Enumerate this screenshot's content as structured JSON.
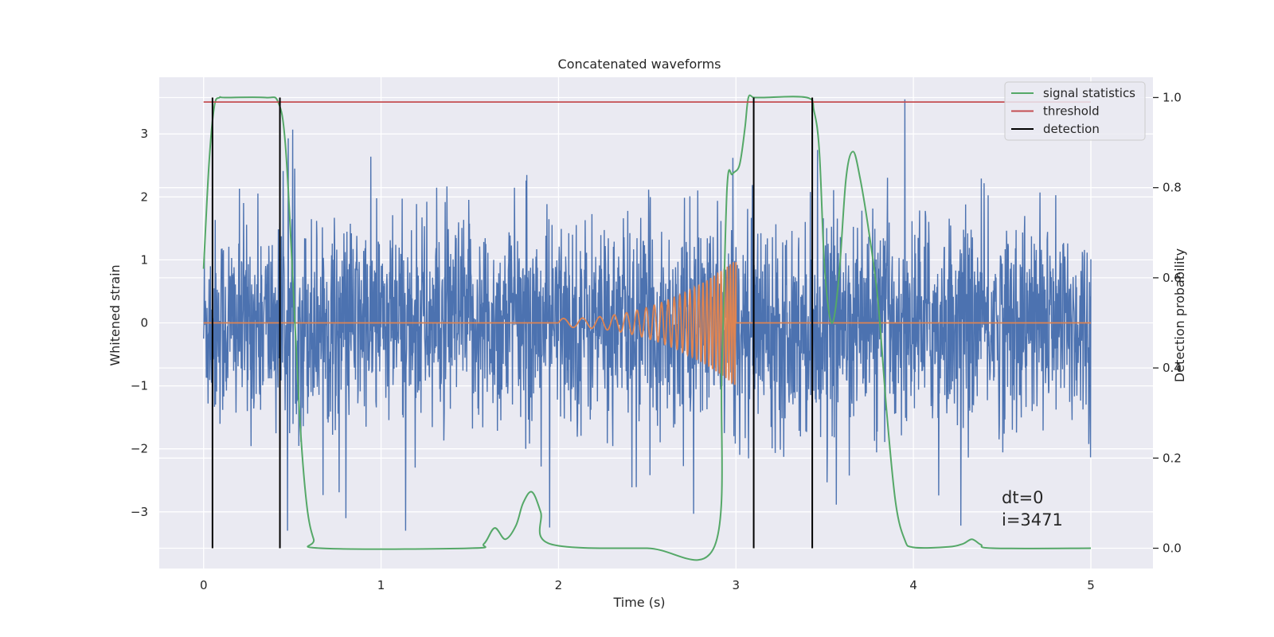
{
  "chart_data": {
    "type": "line",
    "title": "Concatenated waveforms",
    "xlabel": "Time (s)",
    "ylabel": "Whitened strain",
    "y2label": "Detection probability",
    "xlim": [
      -0.25,
      5.35
    ],
    "ylim": [
      -3.9,
      3.9
    ],
    "y2lim": [
      -0.045,
      1.045
    ],
    "xticks": [
      0,
      1,
      2,
      3,
      4,
      5
    ],
    "yticks": [
      -3,
      -2,
      -1,
      0,
      1,
      2,
      3
    ],
    "y2ticks": [
      0.0,
      0.2,
      0.4,
      0.6,
      0.8,
      1.0
    ],
    "xtick_labels": [
      "0",
      "1",
      "2",
      "3",
      "4",
      "5"
    ],
    "ytick_labels": [
      "−3",
      "−2",
      "−1",
      "0",
      "1",
      "2",
      "3"
    ],
    "y2tick_labels": [
      "0.0",
      "0.2",
      "0.4",
      "0.6",
      "0.8",
      "1.0"
    ],
    "grid": true,
    "legend_position": "top-right",
    "series": [
      {
        "name": "",
        "kind": "whitened strain noise",
        "color": "#4c72b0",
        "x_range": [
          0,
          5
        ],
        "typical_amplitude": 1.3,
        "max_value": 3.55,
        "min_value": -3.3
      },
      {
        "name": "",
        "kind": "injected chirp waveform",
        "color": "#dd8452",
        "x_range": [
          0,
          5
        ],
        "chirp_start": 2.0,
        "chirp_end": 3.0,
        "amplitude_start": 0.07,
        "amplitude_end": 1.0
      },
      {
        "name": "signal statistics",
        "color": "#55a868",
        "axis": "right",
        "x": [
          0.0,
          0.03,
          0.06,
          0.09,
          0.12,
          0.35,
          0.42,
          0.46,
          0.5,
          0.54,
          0.58,
          0.62,
          0.66,
          1.5,
          1.58,
          1.64,
          1.7,
          1.76,
          1.8,
          1.85,
          1.9,
          1.95,
          2.5,
          2.88,
          2.92,
          2.95,
          2.98,
          3.02,
          3.05,
          3.07,
          3.1,
          3.15,
          3.4,
          3.44,
          3.47,
          3.5,
          3.54,
          3.58,
          3.62,
          3.66,
          3.7,
          3.75,
          3.8,
          3.85,
          3.9,
          3.95,
          4.0,
          4.2,
          4.28,
          4.33,
          4.38,
          4.45,
          5.0
        ],
        "y": [
          0.62,
          0.85,
          0.98,
          1.0,
          1.0,
          1.0,
          0.99,
          0.9,
          0.62,
          0.3,
          0.1,
          0.02,
          0.0,
          0.0,
          0.01,
          0.045,
          0.02,
          0.05,
          0.1,
          0.125,
          0.08,
          0.01,
          0.0,
          0.005,
          0.4,
          0.8,
          0.83,
          0.85,
          0.93,
          1.0,
          1.0,
          1.0,
          1.0,
          0.97,
          0.88,
          0.62,
          0.5,
          0.6,
          0.82,
          0.88,
          0.82,
          0.7,
          0.55,
          0.3,
          0.1,
          0.02,
          0.002,
          0.003,
          0.01,
          0.02,
          0.008,
          0.0,
          0.0
        ]
      },
      {
        "name": "threshold",
        "color": "#c44e52",
        "axis": "right",
        "x": [
          0.0,
          5.0
        ],
        "y": [
          0.99,
          0.99
        ]
      },
      {
        "name": "detection",
        "color": "#000000",
        "axis": "right",
        "kind": "vertical lines",
        "x": [
          0.05,
          0.43,
          3.1,
          3.43
        ]
      }
    ],
    "annotations": [
      "dt=0",
      "i=3471"
    ],
    "colors": {
      "plot_background": "#eaeaf2",
      "grid": "#ffffff",
      "legend_background": "#eaeaf2"
    }
  }
}
